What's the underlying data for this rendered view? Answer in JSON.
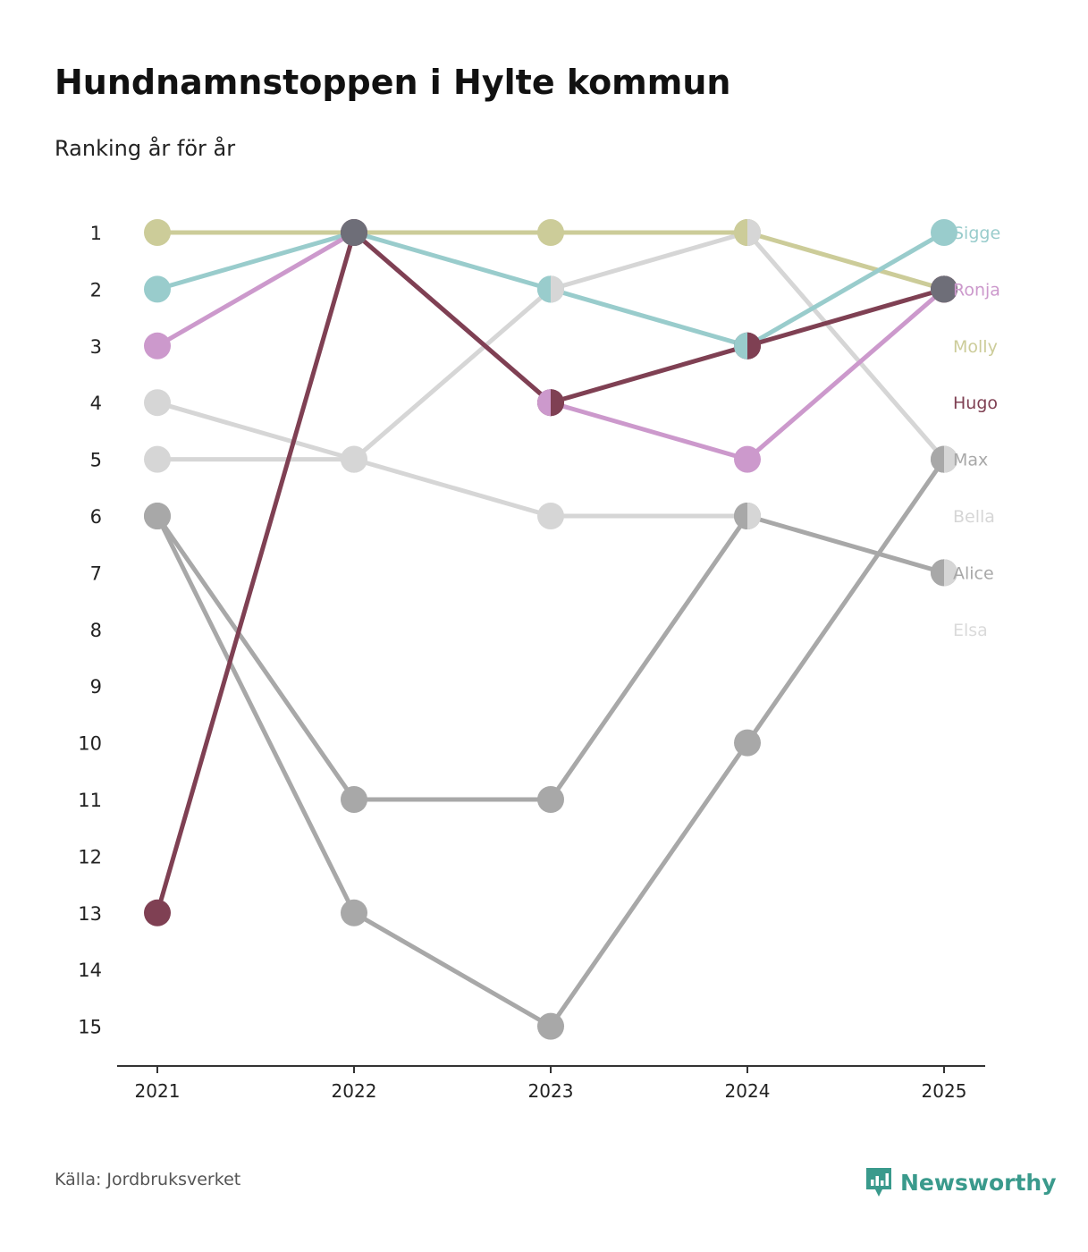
{
  "header": {
    "title": "Hundnamnstoppen i Hylte kommun",
    "subtitle": "Ranking år för år"
  },
  "footer": {
    "source": "Källa: Jordbruksverket",
    "brand": "Newsworthy",
    "brand_color": "#3a9a8c",
    "brand_icon": "newsworthy-logo-icon"
  },
  "chart_data": {
    "type": "line",
    "subtype": "bump-ranking",
    "title": "Hundnamnstoppen i Hylte kommun",
    "subtitle": "Ranking år för år",
    "xlabel": "",
    "ylabel": "",
    "x": [
      "2021",
      "2022",
      "2023",
      "2024",
      "2025"
    ],
    "yticks": [
      1,
      2,
      3,
      4,
      5,
      6,
      7,
      8,
      9,
      10,
      11,
      12,
      13,
      14,
      15
    ],
    "ylim": [
      1,
      15
    ],
    "y_inverted": true,
    "grid": false,
    "legend": "right",
    "series": [
      {
        "name": "Elsa",
        "color": "#dadada",
        "values": [
          null,
          null,
          null,
          null,
          null
        ]
      },
      {
        "name": "Bella",
        "color": "#d6d6d6",
        "values": [
          5,
          5,
          2,
          1,
          5
        ]
      },
      {
        "name": "Max",
        "color": "#d6d6d6",
        "values": [
          4,
          5,
          6,
          6,
          null
        ]
      },
      {
        "name": "Alice",
        "color": "#a8a8a8",
        "values": [
          6,
          11,
          11,
          6,
          7
        ]
      },
      {
        "name": "Max",
        "color": "#a8a8a8",
        "values": [
          6,
          13,
          15,
          10,
          5
        ]
      },
      {
        "name": "Molly",
        "color": "#cccc99",
        "values": [
          1,
          1,
          1,
          1,
          2
        ]
      },
      {
        "name": "Sigge",
        "color": "#99cccc",
        "values": [
          2,
          1,
          2,
          3,
          1
        ]
      },
      {
        "name": "Ronja",
        "color": "#cc99cc",
        "values": [
          3,
          1,
          4,
          5,
          2
        ]
      },
      {
        "name": "Hugo",
        "color": "#7f4053",
        "values": [
          13,
          1,
          4,
          3,
          2
        ]
      }
    ],
    "labels": [
      {
        "name": "Sigge",
        "rank": 1,
        "color": "#99cccc"
      },
      {
        "name": "Ronja",
        "rank": 2,
        "color": "#cc99cc"
      },
      {
        "name": "Molly",
        "rank": 3,
        "color": "#cccc99"
      },
      {
        "name": "Hugo",
        "rank": 4,
        "color": "#7f4053"
      },
      {
        "name": "Max",
        "rank": 5,
        "color": "#a8a8a8"
      },
      {
        "name": "Bella",
        "rank": 6,
        "color": "#d6d6d6"
      },
      {
        "name": "Alice",
        "rank": 7,
        "color": "#a8a8a8"
      },
      {
        "name": "Elsa",
        "rank": 8,
        "color": "#dadada"
      }
    ],
    "markers": [
      {
        "year": "2022",
        "rank": 1,
        "color": "#6e6e78"
      },
      {
        "year": "2025",
        "rank": 2,
        "color": "#6e6e78"
      },
      {
        "year": "2023",
        "rank": 2,
        "left": "#99cccc",
        "right": "#d6d6d6"
      },
      {
        "year": "2023",
        "rank": 4,
        "left": "#cc99cc",
        "right": "#7f4053"
      },
      {
        "year": "2024",
        "rank": 1,
        "left": "#cccc99",
        "right": "#d6d6d6"
      },
      {
        "year": "2024",
        "rank": 3,
        "left": "#99cccc",
        "right": "#7f4053"
      },
      {
        "year": "2024",
        "rank": 6,
        "left": "#a8a8a8",
        "right": "#d6d6d6"
      },
      {
        "year": "2025",
        "rank": 5,
        "left": "#a8a8a8",
        "right": "#d6d6d6"
      },
      {
        "year": "2025",
        "rank": 7,
        "left": "#a8a8a8",
        "right": "#d6d6d6"
      }
    ]
  }
}
